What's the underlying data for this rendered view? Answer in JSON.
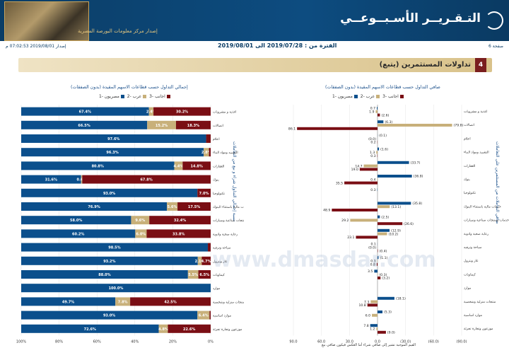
{
  "header": {
    "title": "التـقـريــر الأسـبــوعــي",
    "subtitle": "إصدار مركز معلومات البورصة المصرية",
    "page_label": "صفحة 6",
    "issue_label": "إصدار 2019/08/01 07:02:53 م",
    "period_label": "الفترة من : 2019/07/28 الى 2019/08/01"
  },
  "section": {
    "number": "4",
    "title": "تداولات المستثمرين (يتبع)"
  },
  "watermark": "www.dmasdar.com",
  "left_chart": {
    "side_label": "نسبة إجمالي التداول شراء و بيع من التعاملات"
  },
  "right_chart": {
    "side_label": "صافي التعاملات من المستثمرين على التعاملات"
  },
  "footnote": "القيم الموجبة تشير إلى صافي شراء أما العكس فيكون صافي بيع",
  "chart_data": [
    {
      "type": "bar",
      "orientation": "horizontal",
      "stacked": true,
      "title": "إجمالي التداول حسب قطاعات الاسهم المقيدة (بدون الصفقات)",
      "categories": [
        "اغذية و مشروبات",
        "اتصالات",
        "اعلام",
        "التشييد ومواد البناء",
        "العقارات",
        "بنوك",
        "تكنولوجيا",
        "خدمات مالية باستثناء البنوك",
        "خدمات ومنتجات صناعية وسيارات",
        "رعاية صحية وادوية",
        "سياحة وترفيه",
        "غاز وبترول",
        "كيماويات",
        "موارد",
        "منتجات منزلية وشخصية",
        "موارد اساسية",
        "موزعون وتجارة تجزئة"
      ],
      "series": [
        {
          "name": "مصريون -1",
          "color": "#0b4f8c",
          "values": [
            67.4,
            66.5,
            97.6,
            96.3,
            80.8,
            31.6,
            93.0,
            76.9,
            58.0,
            60.2,
            98.5,
            93.2,
            88.0,
            100.0,
            49.7,
            93.0,
            72.6
          ]
        },
        {
          "name": "عرب -2",
          "color": "#c8b07a",
          "values": [
            2.4,
            15.2,
            0.0,
            2.8,
            4.4,
            0.6,
            0.0,
            5.6,
            9.6,
            6.0,
            0.0,
            2.1,
            5.5,
            0.0,
            7.8,
            6.4,
            4.8
          ]
        },
        {
          "name": "اجانب -3",
          "color": "#7a0e14",
          "values": [
            30.2,
            18.3,
            2.4,
            0.9,
            14.8,
            67.8,
            7.0,
            17.5,
            32.4,
            33.8,
            1.5,
            4.7,
            6.5,
            0.0,
            42.5,
            0.6,
            22.6
          ]
        }
      ],
      "value_labels": [
        [
          "67.4%",
          "2.4%",
          "30.2%"
        ],
        [
          "66.5%",
          "15.2%",
          "18.3%"
        ],
        [
          "97.6%",
          "",
          ""
        ],
        [
          "96.3%",
          "2.8%",
          ""
        ],
        [
          "80.8%",
          "4.4%",
          "14.8%"
        ],
        [
          "31.6%",
          "0.6%",
          "67.8%"
        ],
        [
          "93.0%",
          "",
          "7.0%"
        ],
        [
          "76.9%",
          "5.6%",
          "17.5%"
        ],
        [
          "58.0%",
          "9.6%",
          "32.4%"
        ],
        [
          "60.2%",
          "6.0%",
          "33.8%"
        ],
        [
          "98.5%",
          "",
          ""
        ],
        [
          "93.2%",
          "2.1%",
          "4.7%"
        ],
        [
          "88.0%",
          "5.5%",
          "6.5%"
        ],
        [
          "100.0%",
          "",
          ""
        ],
        [
          "49.7%",
          "7.8%",
          "42.5%"
        ],
        [
          "93.0%",
          "6.4%",
          ""
        ],
        [
          "72.6%",
          "4.8%",
          "22.6%"
        ]
      ],
      "xtick_labels": [
        "100%",
        "80%",
        "60%",
        "40%",
        "20%",
        "0%"
      ],
      "xlim": [
        0,
        100
      ]
    },
    {
      "type": "bar",
      "orientation": "horizontal",
      "grouped": true,
      "title": "صافي التداول حسب قطاعات الاسهم المقيدة (بدون الصفقات)",
      "categories": [
        "اغذية و مشروبات",
        "اتصالات",
        "اعلام",
        "التشييد ومواد البناء",
        "العقارات",
        "بنوك",
        "تكنولوجيا",
        "خدمات مالية باستثناء البنوك",
        "خدمات ومنتجات صناعية وسيارات",
        "رعاية صحية وادوية",
        "سياحة وترفيه",
        "غاز وبترول",
        "كيماويات",
        "موارد",
        "منتجات منزلية وشخصية",
        "موارد اساسية",
        "موزعون وتجارة تجزئة"
      ],
      "series": [
        {
          "name": "مصريون -1",
          "color": "#0b4f8c",
          "values": [
            0.7,
            -6.3,
            -0.1,
            -1.6,
            -33.7,
            -36.8,
            0.3,
            -35.8,
            -2.5,
            -12.9,
            0.1,
            -1.1,
            3.5,
            0,
            -18.1,
            -5.3,
            7.8
          ]
        },
        {
          "name": "عرب -2",
          "color": "#c8b07a",
          "values": [
            1.9,
            -79.8,
            0.0,
            1.3,
            14.7,
            0.4,
            0.0,
            -13.1,
            29.2,
            -10.2,
            0.0,
            0.3,
            -0.3,
            0,
            7.3,
            6.0,
            1.2
          ]
        },
        {
          "name": "اجانب -3",
          "color": "#7a0e14",
          "values": [
            -2.6,
            86.1,
            0.2,
            0.3,
            19.0,
            35.5,
            0.0,
            48.9,
            -26.6,
            23.1,
            -0.4,
            0.8,
            -3.2,
            0,
            10.8,
            0.0,
            -9.0
          ]
        }
      ],
      "value_labels": [
        [
          "0.7",
          "1.9",
          "(2.6)"
        ],
        [
          "(6.3)",
          "(79.8)",
          "86.1"
        ],
        [
          "(0.1)",
          "(0.0)",
          "0.2"
        ],
        [
          "(1.6)",
          "1.3",
          "0.3"
        ],
        [
          "(33.7)",
          "14.7",
          "19.0"
        ],
        [
          "(36.8)",
          "0.4",
          "35.5"
        ],
        [
          "0.3",
          "",
          ""
        ],
        [
          "(35.8)",
          "(13.1)",
          "48.9"
        ],
        [
          "(2.5)",
          "29.2",
          "(26.6)"
        ],
        [
          "(12.9)",
          "(10.2)",
          "23.1"
        ],
        [
          "0.1",
          "(0.0)",
          "(0.4)"
        ],
        [
          "(1.1)",
          "0.3",
          "0.8"
        ],
        [
          "3.5",
          "(0.3)",
          "(3.2)"
        ],
        [
          "",
          "",
          ""
        ],
        [
          "(18.1)",
          "7.3",
          "10.8"
        ],
        [
          "(5.3)",
          "6.0",
          ""
        ],
        [
          "7.8",
          "1.2",
          "(9.0)"
        ]
      ],
      "xtick_labels": [
        "90.0",
        "60.0",
        "30.0",
        "0.0",
        "(30.0)",
        "(60.0)",
        "(90.0)"
      ],
      "xlim": [
        -90,
        90
      ],
      "axis_reversed": true
    }
  ]
}
